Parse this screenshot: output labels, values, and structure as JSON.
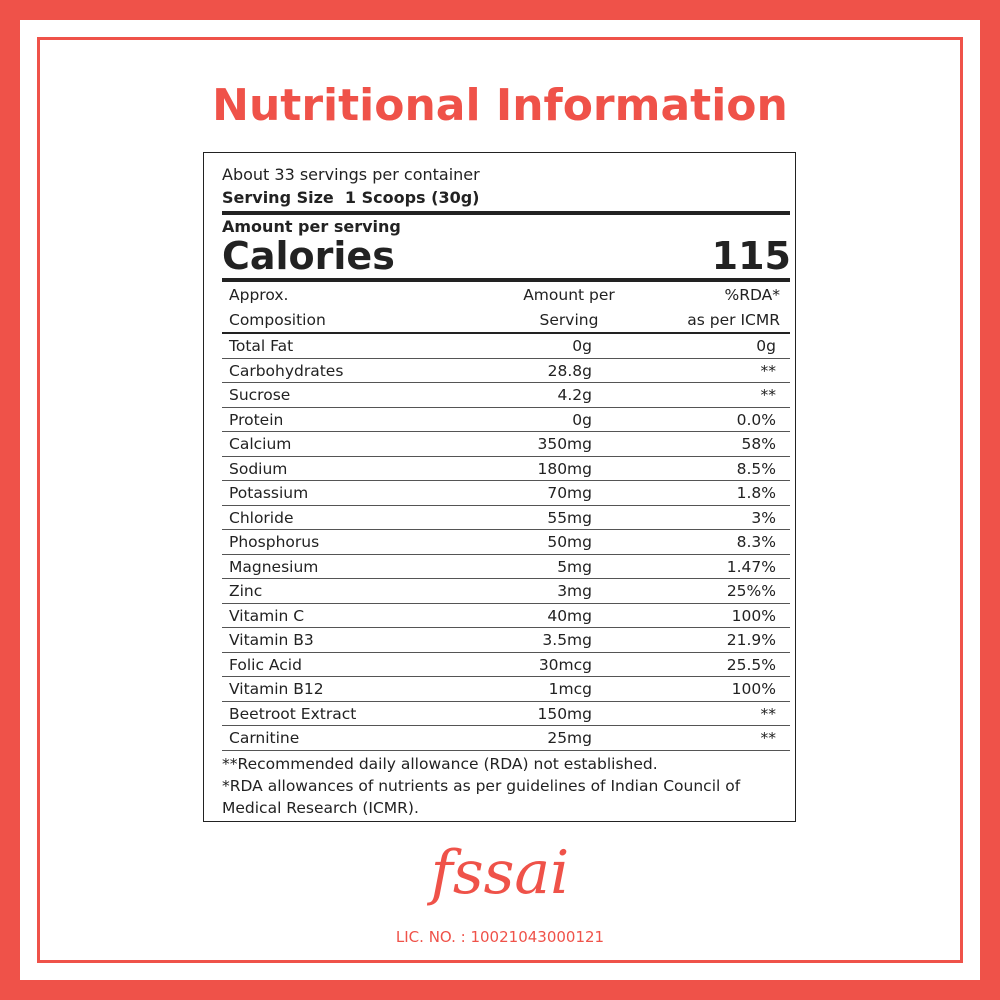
{
  "title": "Nutritional Information",
  "label": {
    "servings": "About 33 servings per container",
    "serving_size": "Serving Size  1 Scoops (30g)",
    "amount_per_serving": "Amount per serving",
    "calories_label": "Calories",
    "calories": "115",
    "columns": [
      [
        "Approx.",
        "Composition"
      ],
      [
        "Amount per",
        "Serving"
      ],
      [
        "%RDA*",
        "as per ICMR"
      ]
    ],
    "rows": [
      [
        "Total Fat",
        "0g",
        "0g"
      ],
      [
        "Carbohydrates",
        "28.8g",
        "**"
      ],
      [
        "Sucrose",
        "4.2g",
        "**"
      ],
      [
        "Protein",
        "0g",
        "0.0%"
      ],
      [
        "Calcium",
        "350mg",
        "58%"
      ],
      [
        "Sodium",
        "180mg",
        "8.5%"
      ],
      [
        "Potassium",
        "70mg",
        "1.8%"
      ],
      [
        "Chloride",
        "55mg",
        "3%"
      ],
      [
        "Phosphorus",
        "50mg",
        "8.3%"
      ],
      [
        "Magnesium",
        "5mg",
        "1.47%"
      ],
      [
        "Zinc",
        "3mg",
        "25%%"
      ],
      [
        "Vitamin C",
        "40mg",
        "100%"
      ],
      [
        "Vitamin B3",
        "3.5mg",
        "21.9%"
      ],
      [
        "Folic Acid",
        "30mcg",
        "25.5%"
      ],
      [
        "Vitamin B12",
        "1mcg",
        "100%"
      ],
      [
        "Beetroot Extract",
        "150mg",
        "**"
      ],
      [
        "Carnitine",
        "25mg",
        "**"
      ]
    ],
    "footnotes": [
      "**Recommended daily allowance (RDA) not established.",
      "*RDA allowances of nutrients as per guidelines of Indian Council of Medical Research (ICMR)."
    ]
  },
  "fssai": {
    "logo": "fssai",
    "license": "LIC. NO. : 10021043000121"
  }
}
